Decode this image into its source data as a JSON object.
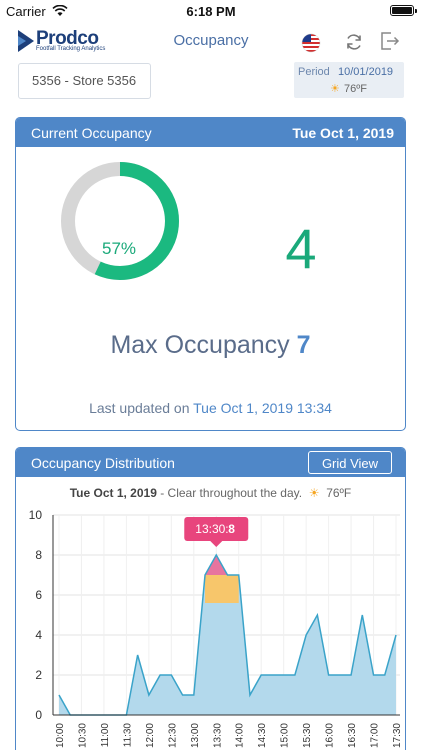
{
  "status_bar": {
    "carrier": "Carrier",
    "time": "6:18 PM"
  },
  "nav": {
    "logo_name": "Prodco",
    "logo_tagline": "Footfall Tracking Analytics",
    "title": "Occupancy",
    "icons": [
      "us-flag-icon",
      "refresh-icon",
      "logout-icon"
    ]
  },
  "filters": {
    "store": "5356 - Store 5356",
    "period_label": "Period",
    "period_date": "10/01/2019",
    "period_temp": "76ºF",
    "weather_icon": "sun-icon"
  },
  "current_occupancy": {
    "title": "Current Occupancy",
    "date": "Tue Oct 1, 2019",
    "percent_label": "57%",
    "percent_value": 0.57,
    "count": "4",
    "max_label": "Max Occupancy",
    "max_value": "7",
    "updated_prefix": "Last updated on",
    "updated_date": "Tue Oct 1, 2019 13:34",
    "colors": {
      "filled": "#1bb980",
      "empty": "#d6d6d6",
      "accent": "#4f87c8"
    }
  },
  "distribution": {
    "title": "Occupancy Distribution",
    "grid_button": "Grid View",
    "date": "Tue Oct 1, 2019",
    "condition": "- Clear throughout the day.",
    "temp": "76ºF",
    "tooltip_time": "13:30:",
    "tooltip_value": "8",
    "colors": {
      "area": "#b3d9ec",
      "line": "#3aa3c9",
      "peak": "#f06292",
      "mid": "#f7c66b",
      "tooltip": "#e8457d"
    }
  },
  "chart_data": {
    "type": "area",
    "x": [
      "10:00",
      "10:15",
      "10:30",
      "10:45",
      "11:00",
      "11:15",
      "11:30",
      "11:45",
      "12:00",
      "12:15",
      "12:30",
      "12:45",
      "13:00",
      "13:15",
      "13:30",
      "13:45",
      "14:00",
      "14:15",
      "14:30",
      "14:45",
      "15:00",
      "15:15",
      "15:30",
      "15:45",
      "16:00",
      "16:15",
      "16:30",
      "16:45",
      "17:00",
      "17:15",
      "17:30"
    ],
    "tick_labels": [
      "10:00",
      "10:30",
      "11:00",
      "11:30",
      "12:00",
      "12:30",
      "13:00",
      "13:30",
      "14:00",
      "14:30",
      "15:00",
      "15:30",
      "16:00",
      "16:30",
      "17:00",
      "17:30"
    ],
    "series": [
      {
        "values": [
          1,
          0,
          0,
          0,
          0,
          0,
          0,
          3,
          1,
          2,
          2,
          1,
          1,
          7,
          8,
          7,
          7,
          1,
          2,
          2,
          2,
          2,
          4,
          5,
          2,
          2,
          2,
          5,
          2,
          2,
          4
        ]
      }
    ],
    "highlight": {
      "x": "13:30",
      "value": 8,
      "peak_band_min": 7,
      "mid_band_min": 5.6
    },
    "ylim": [
      0,
      10
    ],
    "yticks": [
      0,
      2,
      4,
      6,
      8,
      10
    ],
    "grid": true
  }
}
